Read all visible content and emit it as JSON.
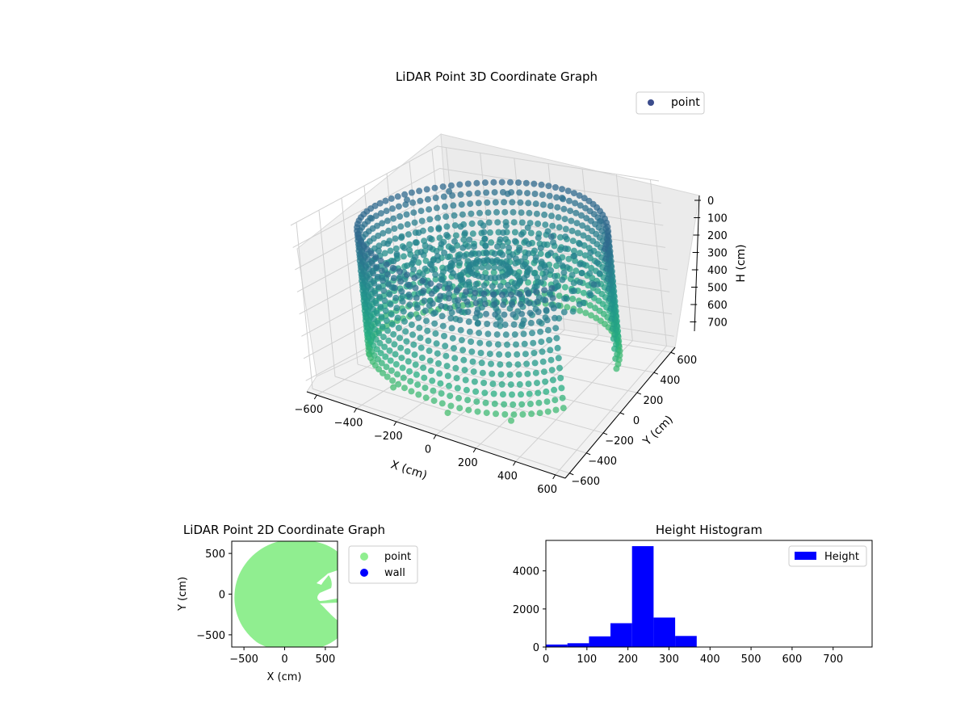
{
  "chart_data": [
    {
      "type": "scatter",
      "projection": "3d",
      "title": "LiDAR Point 3D Coordinate Graph",
      "xlabel": "X (cm)",
      "ylabel": "Y (cm)",
      "zlabel": "H (cm)",
      "xticks": [
        "−600",
        "−400",
        "−200",
        "0",
        "200",
        "400",
        "600"
      ],
      "yticks": [
        "−600",
        "−400",
        "−200",
        "0",
        "200",
        "400",
        "600"
      ],
      "zticks": [
        "0",
        "100",
        "200",
        "300",
        "400",
        "500",
        "600",
        "700"
      ],
      "xlim": [
        -650,
        650
      ],
      "ylim": [
        -650,
        650
      ],
      "zlim": [
        750,
        0
      ],
      "z_inverted": true,
      "grid": true,
      "legend": {
        "position": "top-right",
        "entries": [
          {
            "label": "point",
            "color": "#3b4c8c"
          }
        ]
      },
      "colormap": "viridis",
      "series": [
        {
          "name": "point",
          "description_shape": "ring of points (room wall) at radius ~600 cm spanning heights ~80–650 cm, with floor/ceiling clutter inside",
          "points": [
            {
              "x": -550,
              "y": 200,
              "h": 100
            },
            {
              "x": -600,
              "y": -50,
              "h": 120
            },
            {
              "x": -450,
              "y": 420,
              "h": 110
            },
            {
              "x": -200,
              "y": 560,
              "h": 130
            },
            {
              "x": 100,
              "y": 590,
              "h": 120
            },
            {
              "x": 380,
              "y": 470,
              "h": 140
            },
            {
              "x": 560,
              "y": 220,
              "h": 150
            },
            {
              "x": 600,
              "y": -50,
              "h": 160
            },
            {
              "x": -500,
              "y": -330,
              "h": 630
            },
            {
              "x": -250,
              "y": -560,
              "h": 640
            },
            {
              "x": 50,
              "y": -610,
              "h": 650
            },
            {
              "x": 330,
              "y": -520,
              "h": 640
            },
            {
              "x": 0,
              "y": 0,
              "h": 400
            },
            {
              "x": 120,
              "y": 80,
              "h": 380
            },
            {
              "x": -100,
              "y": -100,
              "h": 420
            },
            {
              "x": 200,
              "y": 150,
              "h": 250
            },
            {
              "x": 250,
              "y": 200,
              "h": 120
            },
            {
              "x": 300,
              "y": 100,
              "h": 300
            }
          ]
        }
      ]
    },
    {
      "type": "scatter",
      "title": "LiDAR Point 2D Coordinate Graph",
      "xlabel": "X (cm)",
      "ylabel": "Y (cm)",
      "xticks": [
        "−500",
        "0",
        "500"
      ],
      "yticks": [
        "500",
        "0",
        "−500"
      ],
      "xlim": [
        -650,
        650
      ],
      "ylim": [
        -650,
        650
      ],
      "legend": {
        "position": "outside-right",
        "entries": [
          {
            "label": "point",
            "color": "#90ee90"
          },
          {
            "label": "wall",
            "color": "#0000ff"
          }
        ]
      },
      "series": [
        {
          "name": "point",
          "color": "#90ee90",
          "shape": "filled disc of radius ~640 cm centered near (80, 0) with notches on the right side"
        },
        {
          "name": "wall",
          "color": "#0000ff",
          "points": []
        }
      ]
    },
    {
      "type": "bar",
      "subtype": "histogram",
      "title": "Height Histogram",
      "xticks": [
        "0",
        "100",
        "200",
        "300",
        "400",
        "500",
        "600",
        "700"
      ],
      "yticks": [
        "0",
        "2000",
        "4000"
      ],
      "xlim": [
        0,
        795
      ],
      "ylim": [
        0,
        5600
      ],
      "legend": {
        "position": "top-right",
        "entries": [
          {
            "label": "Height",
            "color": "#0000ff"
          }
        ]
      },
      "series": [
        {
          "name": "Height",
          "color": "#0000ff",
          "bin_width": 52.5,
          "bins": [
            {
              "start": 0,
              "end": 52.5,
              "value": 130
            },
            {
              "start": 52.5,
              "end": 105,
              "value": 200
            },
            {
              "start": 105,
              "end": 157.5,
              "value": 560
            },
            {
              "start": 157.5,
              "end": 210,
              "value": 1250
            },
            {
              "start": 210,
              "end": 262.5,
              "value": 5300
            },
            {
              "start": 262.5,
              "end": 315,
              "value": 1550
            },
            {
              "start": 315,
              "end": 367.5,
              "value": 580
            },
            {
              "start": 367.5,
              "end": 420,
              "value": 0
            },
            {
              "start": 420,
              "end": 472.5,
              "value": 0
            },
            {
              "start": 472.5,
              "end": 525,
              "value": 0
            },
            {
              "start": 525,
              "end": 577.5,
              "value": 0
            },
            {
              "start": 577.5,
              "end": 630,
              "value": 0
            },
            {
              "start": 630,
              "end": 682.5,
              "value": 0
            },
            {
              "start": 682.5,
              "end": 735,
              "value": 0
            },
            {
              "start": 735,
              "end": 787.5,
              "value": 0
            }
          ]
        }
      ]
    }
  ]
}
